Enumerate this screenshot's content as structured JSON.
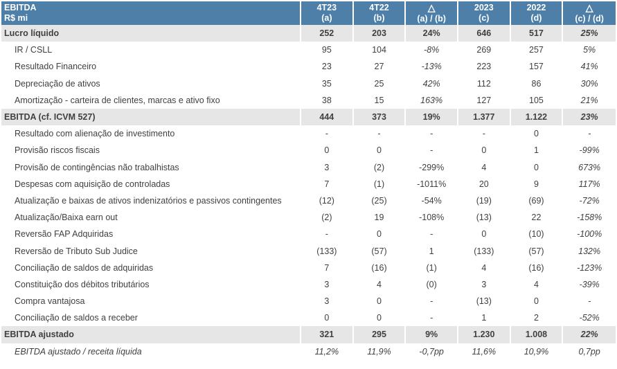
{
  "header": {
    "title_line1": "EBITDA",
    "title_line2": "R$ mi",
    "columns": [
      {
        "top": "4T23",
        "bottom": "(a)"
      },
      {
        "top": "4T22",
        "bottom": "(b)"
      },
      {
        "top": "△",
        "bottom": "(a) / (b)"
      },
      {
        "top": "2023",
        "bottom": "(c)"
      },
      {
        "top": "2022",
        "bottom": "(d)"
      },
      {
        "top": "△",
        "bottom": "(c) / (d)"
      }
    ]
  },
  "rows": [
    {
      "label": "Lucro líquido",
      "values": [
        "252",
        "203",
        "24%",
        "646",
        "517",
        "25%"
      ]
    },
    {
      "label": "IR / CSLL",
      "values": [
        "95",
        "104",
        "-8%",
        "269",
        "257",
        "5%"
      ]
    },
    {
      "label": "Resultado Financeiro",
      "values": [
        "23",
        "27",
        "-13%",
        "223",
        "157",
        "41%"
      ]
    },
    {
      "label": "Depreciação de ativos",
      "values": [
        "35",
        "25",
        "42%",
        "112",
        "86",
        "30%"
      ]
    },
    {
      "label": "Amortização - carteira de clientes, marcas e ativo fixo",
      "values": [
        "38",
        "15",
        "163%",
        "127",
        "105",
        "21%"
      ]
    },
    {
      "label": "EBITDA (cf. ICVM 527)",
      "values": [
        "444",
        "373",
        "19%",
        "1.377",
        "1.122",
        "23%"
      ]
    },
    {
      "label": "Resultado com alienação de investimento",
      "values": [
        "-",
        "-",
        "-",
        "-",
        "0",
        "-"
      ]
    },
    {
      "label": "Provisão riscos fiscais",
      "values": [
        "0",
        "0",
        "-",
        "0",
        "1",
        "-99%"
      ]
    },
    {
      "label": "Provisão de contingências não trabalhistas",
      "values": [
        "3",
        "(2)",
        "-299%",
        "4",
        "0",
        "673%"
      ]
    },
    {
      "label": "Despesas com aquisição de controladas",
      "values": [
        "7",
        "(1)",
        "-1011%",
        "20",
        "9",
        "117%"
      ]
    },
    {
      "label": "Atualização e baixas de ativos indenizatórios e passivos contingentes",
      "values": [
        "(12)",
        "(25)",
        "-54%",
        "(19)",
        "(69)",
        "-72%"
      ]
    },
    {
      "label": "Atualização/Baixa earn out",
      "values": [
        "(2)",
        "19",
        "-108%",
        "(13)",
        "22",
        "-158%"
      ]
    },
    {
      "label": "Reversão FAP Adquiridas",
      "values": [
        "-",
        "0",
        "-",
        "0",
        "(10)",
        "-100%"
      ]
    },
    {
      "label": "Reversão de Tributo Sub Judice",
      "values": [
        "(133)",
        "(57)",
        "1",
        "(133)",
        "(57)",
        "132%"
      ]
    },
    {
      "label": "Conciliação de saldos de adquiridas",
      "values": [
        "7",
        "(16)",
        "(1)",
        "4",
        "(16)",
        "-123%"
      ]
    },
    {
      "label": "Constituição dos débitos tributários",
      "values": [
        "3",
        "4",
        "(0)",
        "3",
        "4",
        "-39%"
      ]
    },
    {
      "label": "Compra vantajosa",
      "values": [
        "3",
        "0",
        "-",
        "(13)",
        "0",
        "-"
      ]
    },
    {
      "label": "Conciliação de saldos a receber",
      "values": [
        "0",
        "0",
        "-",
        "1",
        "2",
        "-52%"
      ]
    },
    {
      "label": "EBITDA ajustado",
      "values": [
        "321",
        "295",
        "9%",
        "1.230",
        "1.008",
        "22%"
      ]
    },
    {
      "label": "EBITDA ajustado / receita líquida",
      "values": [
        "11,2%",
        "11,9%",
        "-0,7pp",
        "11,6%",
        "10,9%",
        "0,7pp"
      ]
    }
  ],
  "colors": {
    "header_bg": "#4d7fa8",
    "header_text": "#ffffff",
    "total_row_bg": "#e6e6e6",
    "text": "#404040"
  }
}
